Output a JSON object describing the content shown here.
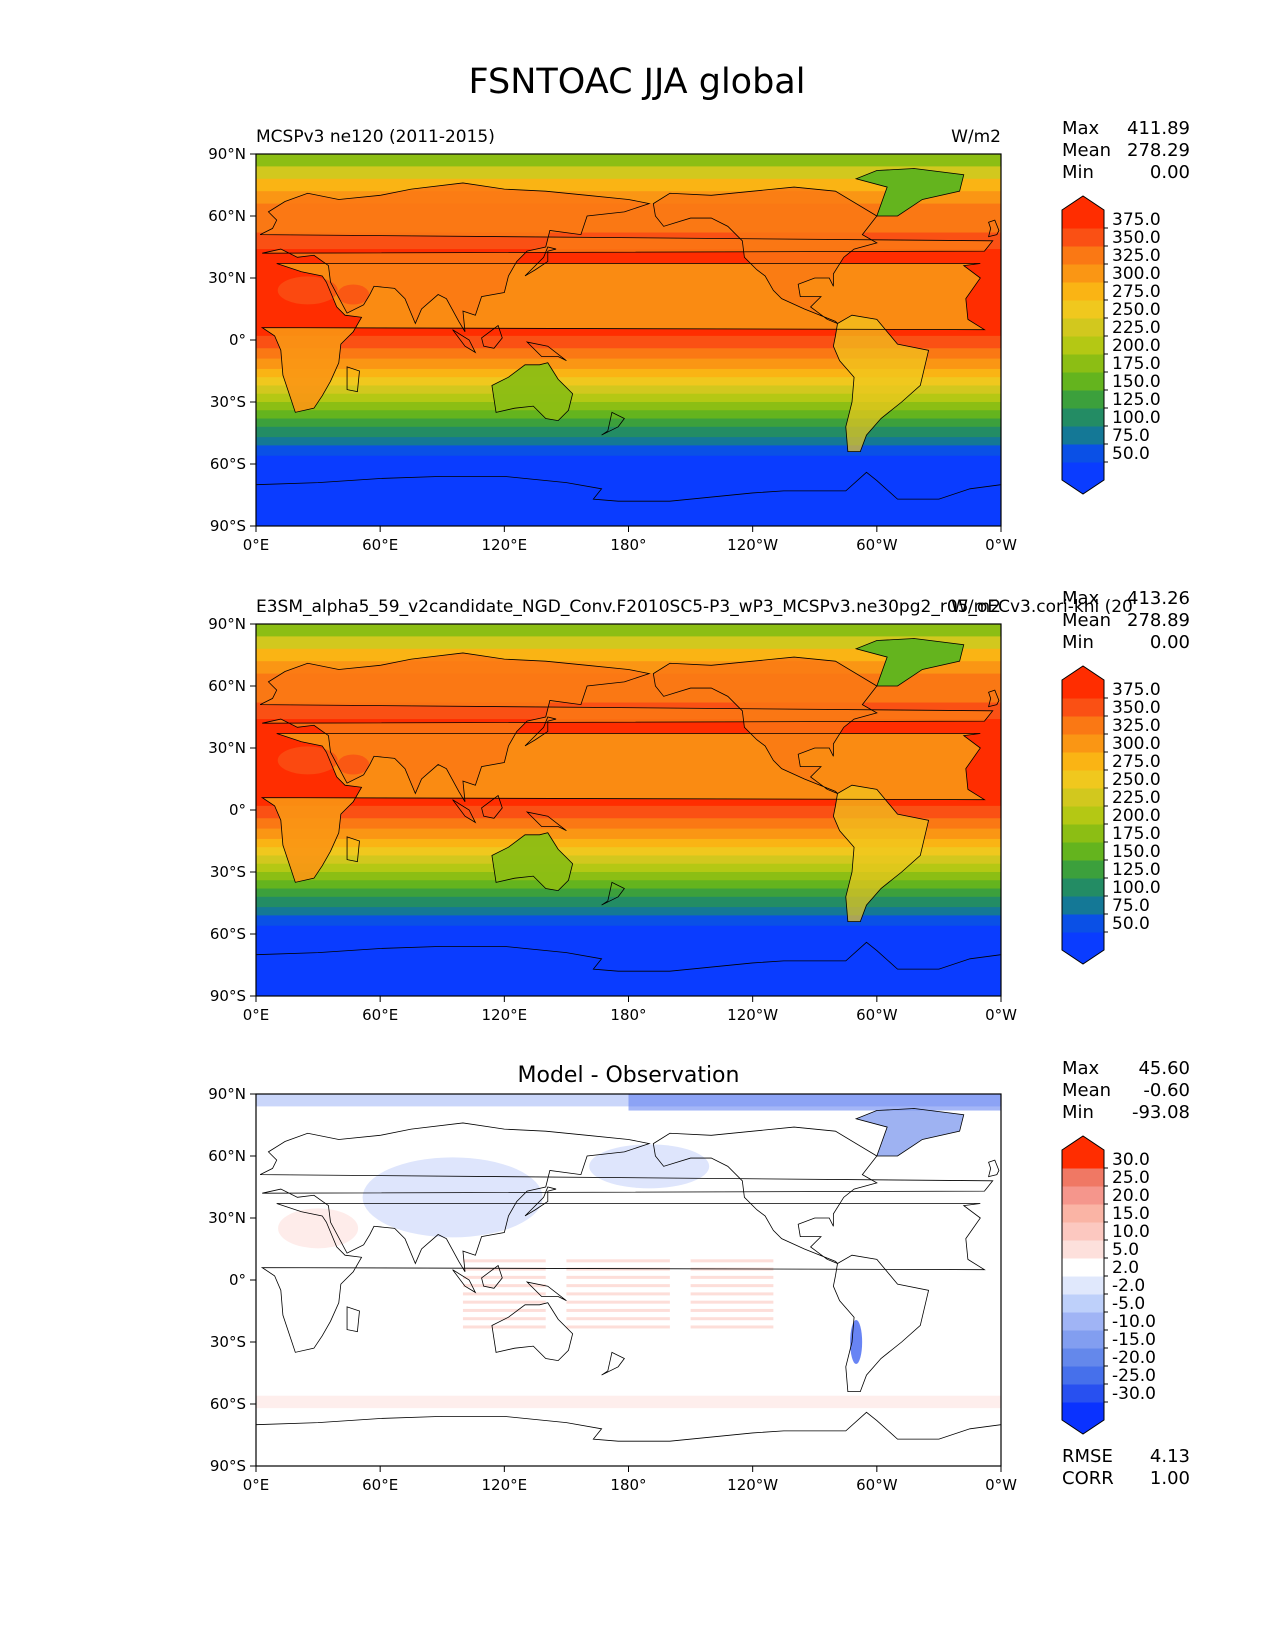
{
  "figure": {
    "title": "FSNTOAC JJA global"
  },
  "chart_data": [
    {
      "type": "heatmap",
      "panel": "test",
      "title_left": "MCSPv3 ne120 (2011-2015)",
      "title_center": "",
      "units": "W/m2",
      "stats": {
        "max_label": "Max",
        "max": "411.89",
        "mean_label": "Mean",
        "mean": "278.29",
        "min_label": "Min",
        "min": "0.00"
      },
      "colorbar": {
        "ticks": [
          "375.0",
          "350.0",
          "325.0",
          "300.0",
          "275.0",
          "250.0",
          "225.0",
          "200.0",
          "175.0",
          "150.0",
          "125.0",
          "100.0",
          "75.0",
          "50.0"
        ],
        "colors": [
          "#0a3cff",
          "#0a50e6",
          "#147896",
          "#238c64",
          "#3ca03c",
          "#64b41e",
          "#8cbe14",
          "#b4c814",
          "#d2c81e",
          "#f0c81e",
          "#fab414",
          "#fa9614",
          "#fa7814",
          "#fa5014",
          "#ff2d00"
        ]
      },
      "x_ticks": [
        "0°E",
        "60°E",
        "120°E",
        "180°",
        "120°W",
        "60°W",
        "0°W"
      ],
      "x_tick_values": [
        0,
        60,
        120,
        180,
        240,
        300,
        360
      ],
      "y_ticks": [
        "90°N",
        "60°N",
        "30°N",
        "0°",
        "30°S",
        "60°S",
        "90°S"
      ],
      "y_tick_values": [
        90,
        60,
        30,
        0,
        -30,
        -60,
        -90
      ],
      "xlim": [
        0,
        360
      ],
      "ylim": [
        -90,
        90
      ]
    },
    {
      "type": "heatmap",
      "panel": "reference",
      "title_left": "E3SM_alpha5_59_v2candidate_NGD_Conv.F2010SC5-P3_wP3_MCSPv3.ne30pg2_r05_oECv3.cori-knl (20",
      "title_center": "",
      "units": "W/m2",
      "stats": {
        "max_label": "Max",
        "max": "413.26",
        "mean_label": "Mean",
        "mean": "278.89",
        "min_label": "Min",
        "min": "0.00"
      },
      "colorbar": {
        "ticks": [
          "375.0",
          "350.0",
          "325.0",
          "300.0",
          "275.0",
          "250.0",
          "225.0",
          "200.0",
          "175.0",
          "150.0",
          "125.0",
          "100.0",
          "75.0",
          "50.0"
        ],
        "colors": [
          "#0a3cff",
          "#0a50e6",
          "#147896",
          "#238c64",
          "#3ca03c",
          "#64b41e",
          "#8cbe14",
          "#b4c814",
          "#d2c81e",
          "#f0c81e",
          "#fab414",
          "#fa9614",
          "#fa7814",
          "#fa5014",
          "#ff2d00"
        ]
      },
      "x_ticks": [
        "0°E",
        "60°E",
        "120°E",
        "180°",
        "120°W",
        "60°W",
        "0°W"
      ],
      "x_tick_values": [
        0,
        60,
        120,
        180,
        240,
        300,
        360
      ],
      "y_ticks": [
        "90°N",
        "60°N",
        "30°N",
        "0°",
        "30°S",
        "60°S",
        "90°S"
      ],
      "y_tick_values": [
        90,
        60,
        30,
        0,
        -30,
        -60,
        -90
      ],
      "xlim": [
        0,
        360
      ],
      "ylim": [
        -90,
        90
      ]
    },
    {
      "type": "heatmap",
      "panel": "difference",
      "title_left": "",
      "title_center": "Model - Observation",
      "units": "",
      "stats": {
        "max_label": "Max",
        "max": "45.60",
        "mean_label": "Mean",
        "mean": "-0.60",
        "min_label": "Min",
        "min": "-93.08"
      },
      "extra_stats": {
        "rmse_label": "RMSE",
        "rmse": "4.13",
        "corr_label": "CORR",
        "corr": "1.00"
      },
      "colorbar": {
        "ticks": [
          "30.0",
          "25.0",
          "20.0",
          "15.0",
          "10.0",
          "5.0",
          "2.0",
          "-2.0",
          "-5.0",
          "-10.0",
          "-15.0",
          "-20.0",
          "-25.0",
          "-30.0"
        ],
        "colors": [
          "#0a32ff",
          "#2850f0",
          "#4670eb",
          "#6488eb",
          "#829ef0",
          "#a0b4f5",
          "#bed0fa",
          "#e0e8fc",
          "#ffffff",
          "#fde0dc",
          "#fcc8c0",
          "#fab4a5",
          "#f5968c",
          "#f07864",
          "#ff2d00"
        ]
      },
      "x_ticks": [
        "0°E",
        "60°E",
        "120°E",
        "180°",
        "120°W",
        "60°W",
        "0°W"
      ],
      "x_tick_values": [
        0,
        60,
        120,
        180,
        240,
        300,
        360
      ],
      "y_ticks": [
        "90°N",
        "60°N",
        "30°N",
        "0°",
        "30°S",
        "60°S",
        "90°S"
      ],
      "y_tick_values": [
        90,
        60,
        30,
        0,
        -30,
        -60,
        -90
      ],
      "xlim": [
        0,
        360
      ],
      "ylim": [
        -90,
        90
      ]
    }
  ]
}
